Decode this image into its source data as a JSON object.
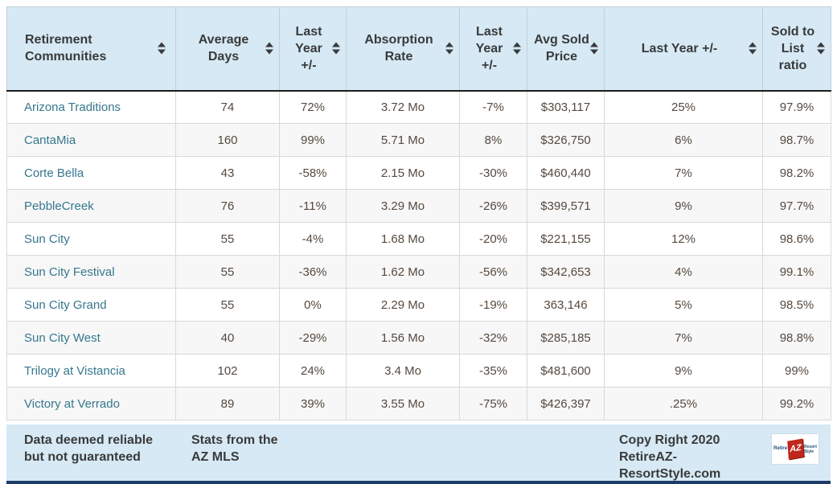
{
  "table": {
    "columns": [
      {
        "label": "Retirement Communities",
        "sortable": true
      },
      {
        "label": "Average Days",
        "sortable": true
      },
      {
        "label": "Last Year +/-",
        "sortable": true
      },
      {
        "label": "Absorption Rate",
        "sortable": true
      },
      {
        "label": "Last Year +/-",
        "sortable": true
      },
      {
        "label": "Avg Sold Price",
        "sortable": true
      },
      {
        "label": "Last Year +/-",
        "sortable": true
      },
      {
        "label": "Sold to List ratio",
        "sortable": true
      }
    ],
    "rows": [
      [
        "Arizona Traditions",
        "74",
        "72%",
        "3.72 Mo",
        "-7%",
        "$303,117",
        "25%",
        "97.9%"
      ],
      [
        "CantaMia",
        "160",
        "99%",
        "5.71 Mo",
        "8%",
        "$326,750",
        "6%",
        "98.7%"
      ],
      [
        "Corte Bella",
        "43",
        "-58%",
        "2.15 Mo",
        "-30%",
        "$460,440",
        "7%",
        "98.2%"
      ],
      [
        "PebbleCreek",
        "76",
        "-11%",
        "3.29 Mo",
        "-26%",
        "$399,571",
        "9%",
        "97.7%"
      ],
      [
        "Sun City",
        "55",
        "-4%",
        "1.68 Mo",
        "-20%",
        "$221,155",
        "12%",
        "98.6%"
      ],
      [
        "Sun City Festival",
        "55",
        "-36%",
        "1.62 Mo",
        "-56%",
        "$342,653",
        "4%",
        "99.1%"
      ],
      [
        "Sun City Grand",
        "55",
        "0%",
        "2.29 Mo",
        "-19%",
        "363,146",
        "5%",
        "98.5%"
      ],
      [
        "Sun City West",
        "40",
        "-29%",
        "1.56 Mo",
        "-32%",
        "$285,185",
        "7%",
        "98.8%"
      ],
      [
        "Trilogy at Vistancia",
        "102",
        "24%",
        "3.4 Mo",
        "-35%",
        "$481,600",
        "9%",
        "99%"
      ],
      [
        "Victory at Verrado",
        "89",
        "39%",
        "3.55 Mo",
        "-75%",
        "$426,397",
        ".25%",
        "99.2%"
      ]
    ]
  },
  "footer": {
    "disclaimer": "Data deemed reliable but not guaranteed",
    "source": "Stats from the AZ MLS",
    "copyright": "Copy Right 2020 RetireAZ-ResortStyle.com",
    "logo": {
      "left_text": "Retire",
      "badge_text": "AZ",
      "right_text_line1": "Resort",
      "right_text_line2": "Style"
    }
  },
  "colors": {
    "header_footer_blue": "#d6e9f5",
    "bottom_bar_navy": "#1e3c68",
    "community_link_teal": "#35778d",
    "body_text": "#55493f",
    "header_text": "#3a3a3a",
    "grid_line": "#d9d9d9",
    "alt_row": "#f7f7f7",
    "logo_red": "#c0271c"
  }
}
